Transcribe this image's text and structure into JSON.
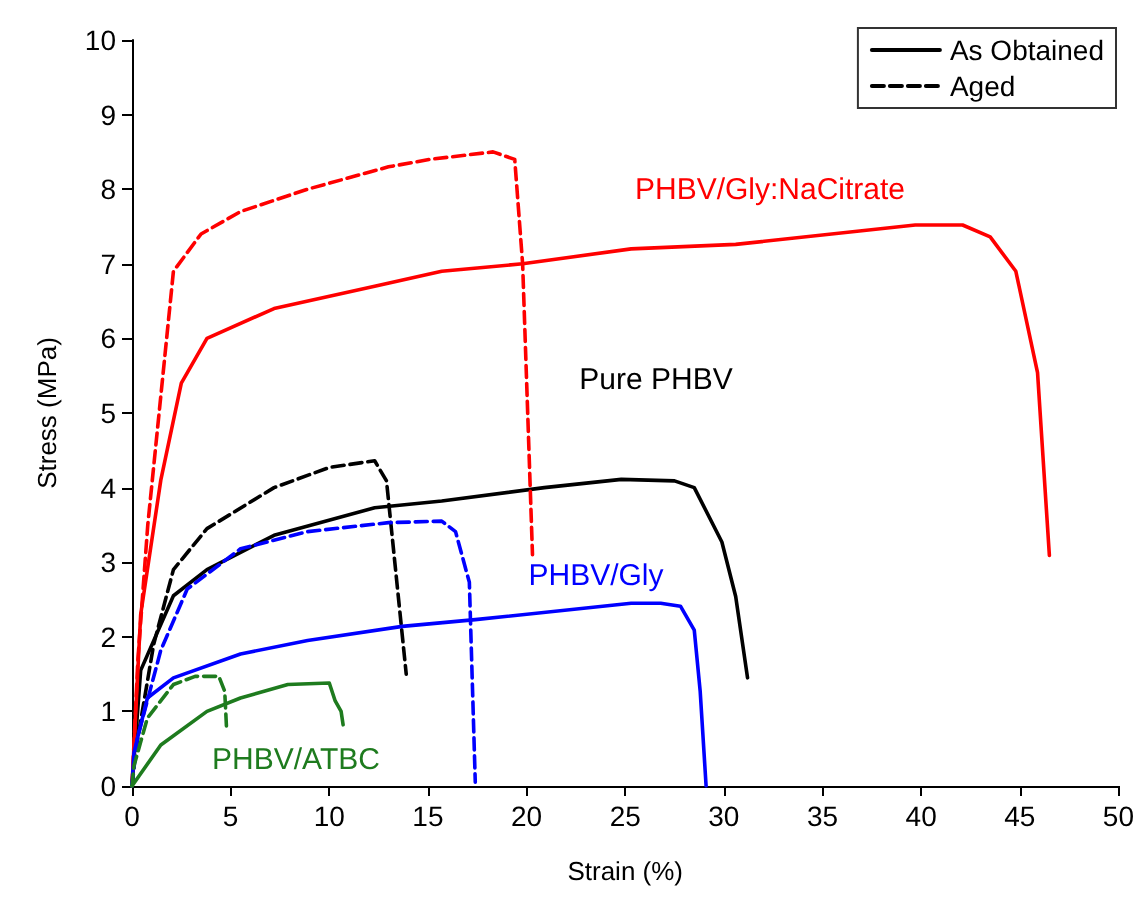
{
  "chart_data": {
    "type": "line",
    "xlabel": "Strain (%)",
    "ylabel": "Stress (MPa)",
    "xlim": [
      0,
      50
    ],
    "ylim": [
      0,
      10
    ],
    "xticks": [
      0,
      5,
      10,
      15,
      20,
      25,
      30,
      35,
      40,
      45,
      50
    ],
    "yticks": [
      0,
      1,
      2,
      3,
      4,
      5,
      6,
      7,
      8,
      9,
      10
    ],
    "grid": false,
    "legend": "top right",
    "marker": "none",
    "series": [
      {
        "name": "As Obtained",
        "color": "#000000",
        "line_style": "solid",
        "x": [
          0,
          0.44,
          2.1,
          3.8,
          7.2,
          12.3,
          15.7,
          20.9,
          24.8,
          27.5,
          28.5,
          29.9,
          30.6,
          31.2
        ],
        "values": [
          0,
          1.55,
          2.55,
          2.9,
          3.36,
          3.73,
          3.82,
          4.0,
          4.11,
          4.09,
          4.0,
          3.27,
          2.54,
          1.45
        ]
      },
      {
        "name": "Aged",
        "color": "#000000",
        "line_style": "dashed",
        "x": [
          0,
          0.17,
          1.1,
          2.1,
          3.8,
          7.2,
          10,
          12.3,
          12.9,
          13.9
        ],
        "values": [
          0,
          0.45,
          1.9,
          2.9,
          3.45,
          4.0,
          4.27,
          4.36,
          4.09,
          1.5
        ]
      },
      {
        "color": "#ff0000",
        "line_style": "solid",
        "x": [
          0,
          0.44,
          1.46,
          2.5,
          3.8,
          7.2,
          12.3,
          15.7,
          19.8,
          25.3,
          30.6,
          39.7,
          42.1,
          43.5,
          44.8,
          45.9,
          46.5
        ],
        "values": [
          0,
          2.3,
          4.1,
          5.4,
          6.0,
          6.4,
          6.7,
          6.9,
          7.0,
          7.2,
          7.26,
          7.52,
          7.52,
          7.36,
          6.9,
          5.54,
          3.09
        ]
      },
      {
        "color": "#ff0000",
        "line_style": "dashed",
        "x": [
          0,
          0.3,
          0.8,
          2.1,
          3.5,
          5.5,
          8.9,
          13,
          15.1,
          18.3,
          19.4,
          19.8,
          20.3
        ],
        "values": [
          0,
          1.7,
          3.5,
          6.9,
          7.4,
          7.7,
          8.0,
          8.3,
          8.4,
          8.5,
          8.4,
          7.0,
          3.1
        ]
      },
      {
        "color": "#0000ff",
        "line_style": "solid",
        "x": [
          0,
          0.1,
          0.78,
          2.1,
          5.5,
          8.9,
          13.7,
          17.4,
          25.3,
          26.8,
          27.8,
          28.5,
          28.8,
          29.1
        ],
        "values": [
          0,
          0.45,
          1.18,
          1.45,
          1.77,
          1.95,
          2.14,
          2.23,
          2.45,
          2.45,
          2.41,
          2.09,
          1.27,
          0
        ]
      },
      {
        "color": "#0000ff",
        "line_style": "dashed",
        "x": [
          0,
          0.27,
          1.46,
          2.8,
          5.5,
          8.9,
          13,
          15.7,
          16.4,
          17.1,
          17.4
        ],
        "values": [
          0,
          0.64,
          1.82,
          2.64,
          3.18,
          3.41,
          3.53,
          3.55,
          3.41,
          2.73,
          0.05
        ]
      },
      {
        "color": "#1e7b1e",
        "line_style": "solid",
        "x": [
          0,
          1.46,
          3.8,
          5.5,
          7.9,
          10,
          10.3,
          10.6,
          10.7
        ],
        "values": [
          0,
          0.55,
          1.0,
          1.18,
          1.36,
          1.38,
          1.14,
          1.0,
          0.82
        ]
      },
      {
        "color": "#1e7b1e",
        "line_style": "dashed",
        "x": [
          0,
          0.1,
          0.78,
          2.1,
          3.2,
          4.4,
          4.7,
          4.8
        ],
        "values": [
          0,
          0.27,
          0.91,
          1.36,
          1.47,
          1.47,
          1.27,
          0.73
        ]
      }
    ],
    "annotations": [
      "PHBV/Gly:NaCitrate",
      "Pure PHBV",
      "PHBV/Gly",
      "PHBV/ATBC"
    ]
  }
}
